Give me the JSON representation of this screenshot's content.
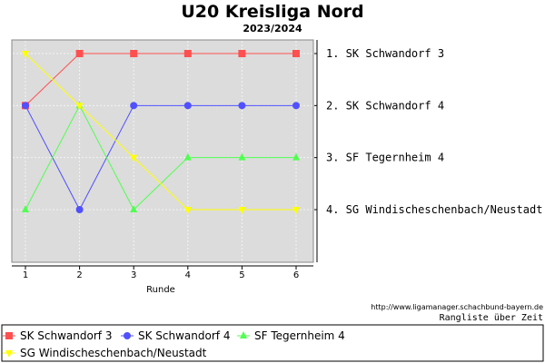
{
  "chart_data": {
    "type": "line",
    "title": "U20 Kreisliga Nord",
    "subtitle": "2023/2024",
    "xlabel": "Runde",
    "x": [
      1,
      2,
      3,
      4,
      5,
      6
    ],
    "ylim": [
      1,
      4
    ],
    "y_inverted": true,
    "grid": true,
    "background_color": "#dcdcdc",
    "series": [
      {
        "name": "SK Schwandorf 3",
        "color": "#ff5050",
        "marker": "square",
        "values": [
          2,
          1,
          1,
          1,
          1,
          1
        ]
      },
      {
        "name": "SK Schwandorf 4",
        "color": "#5050ff",
        "marker": "circle",
        "values": [
          2,
          4,
          2,
          2,
          2,
          2
        ]
      },
      {
        "name": "SF Tegernheim 4",
        "color": "#50ff50",
        "marker": "triangle",
        "values": [
          4,
          2,
          4,
          3,
          3,
          3
        ]
      },
      {
        "name": "SG Windischeschenbach/Neustadt",
        "color": "#ffff00",
        "marker": "triangle-down",
        "values": [
          1,
          2,
          3,
          4,
          4,
          4
        ]
      }
    ],
    "final_ranking": [
      "1.  SK Schwandorf 3",
      "2.  SK Schwandorf 4",
      "3.  SF Tegernheim 4",
      "4.  SG Windischeschenbach/Neustadt"
    ],
    "source_url": "http://www.ligamanager.schachbund-bayern.de",
    "caption": "Rangliste über Zeit",
    "legend_position": "bottom"
  }
}
